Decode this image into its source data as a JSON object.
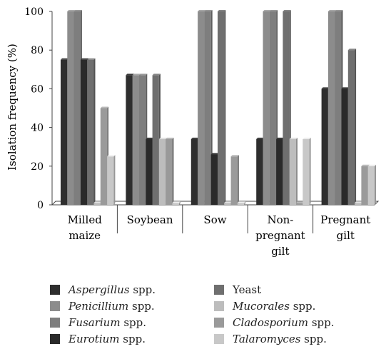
{
  "chart_data": {
    "type": "bar",
    "categories": [
      [
        "Milled",
        "maize"
      ],
      [
        "Soybean"
      ],
      [
        "Sow"
      ],
      [
        "Non-",
        "pregnant",
        "gilt"
      ],
      [
        "Pregnant",
        "gilt"
      ]
    ],
    "ylabel": "Isolation frequency (%)",
    "xlabel": "",
    "title": "",
    "ylim": [
      0,
      100
    ],
    "yticks": [
      0,
      20,
      40,
      60,
      80,
      100
    ],
    "legend_position": "bottom",
    "series": [
      {
        "name": "Aspergillus",
        "suffix": " spp.",
        "color": "#2e2e2e",
        "values": [
          75,
          67,
          34,
          34,
          60
        ]
      },
      {
        "name": "Penicillium",
        "suffix": " spp.",
        "color": "#8c8c8c",
        "values": [
          100,
          67,
          100,
          100,
          100
        ]
      },
      {
        "name": "Fusarium",
        "suffix": " spp.",
        "color": "#7e7e7e",
        "values": [
          100,
          67,
          100,
          100,
          100
        ]
      },
      {
        "name": "Eurotium",
        "suffix": " spp.",
        "color": "#2a2a2a",
        "values": [
          75,
          34,
          26,
          34,
          60
        ]
      },
      {
        "name": "Yeast",
        "suffix": "",
        "color": "#6f6f6f",
        "values": [
          75,
          67,
          100,
          100,
          80
        ]
      },
      {
        "name": "Mucorales",
        "suffix": " spp.",
        "color": "#bdbdbd",
        "values": [
          1,
          34,
          1,
          34,
          1
        ]
      },
      {
        "name": "Cladosporium",
        "suffix": " spp.",
        "color": "#9a9a9a",
        "values": [
          50,
          34,
          25,
          1,
          20
        ]
      },
      {
        "name": "Talaromyces",
        "suffix": " spp.",
        "color": "#c8c8c8",
        "values": [
          25,
          1,
          1,
          34,
          20
        ]
      }
    ]
  }
}
